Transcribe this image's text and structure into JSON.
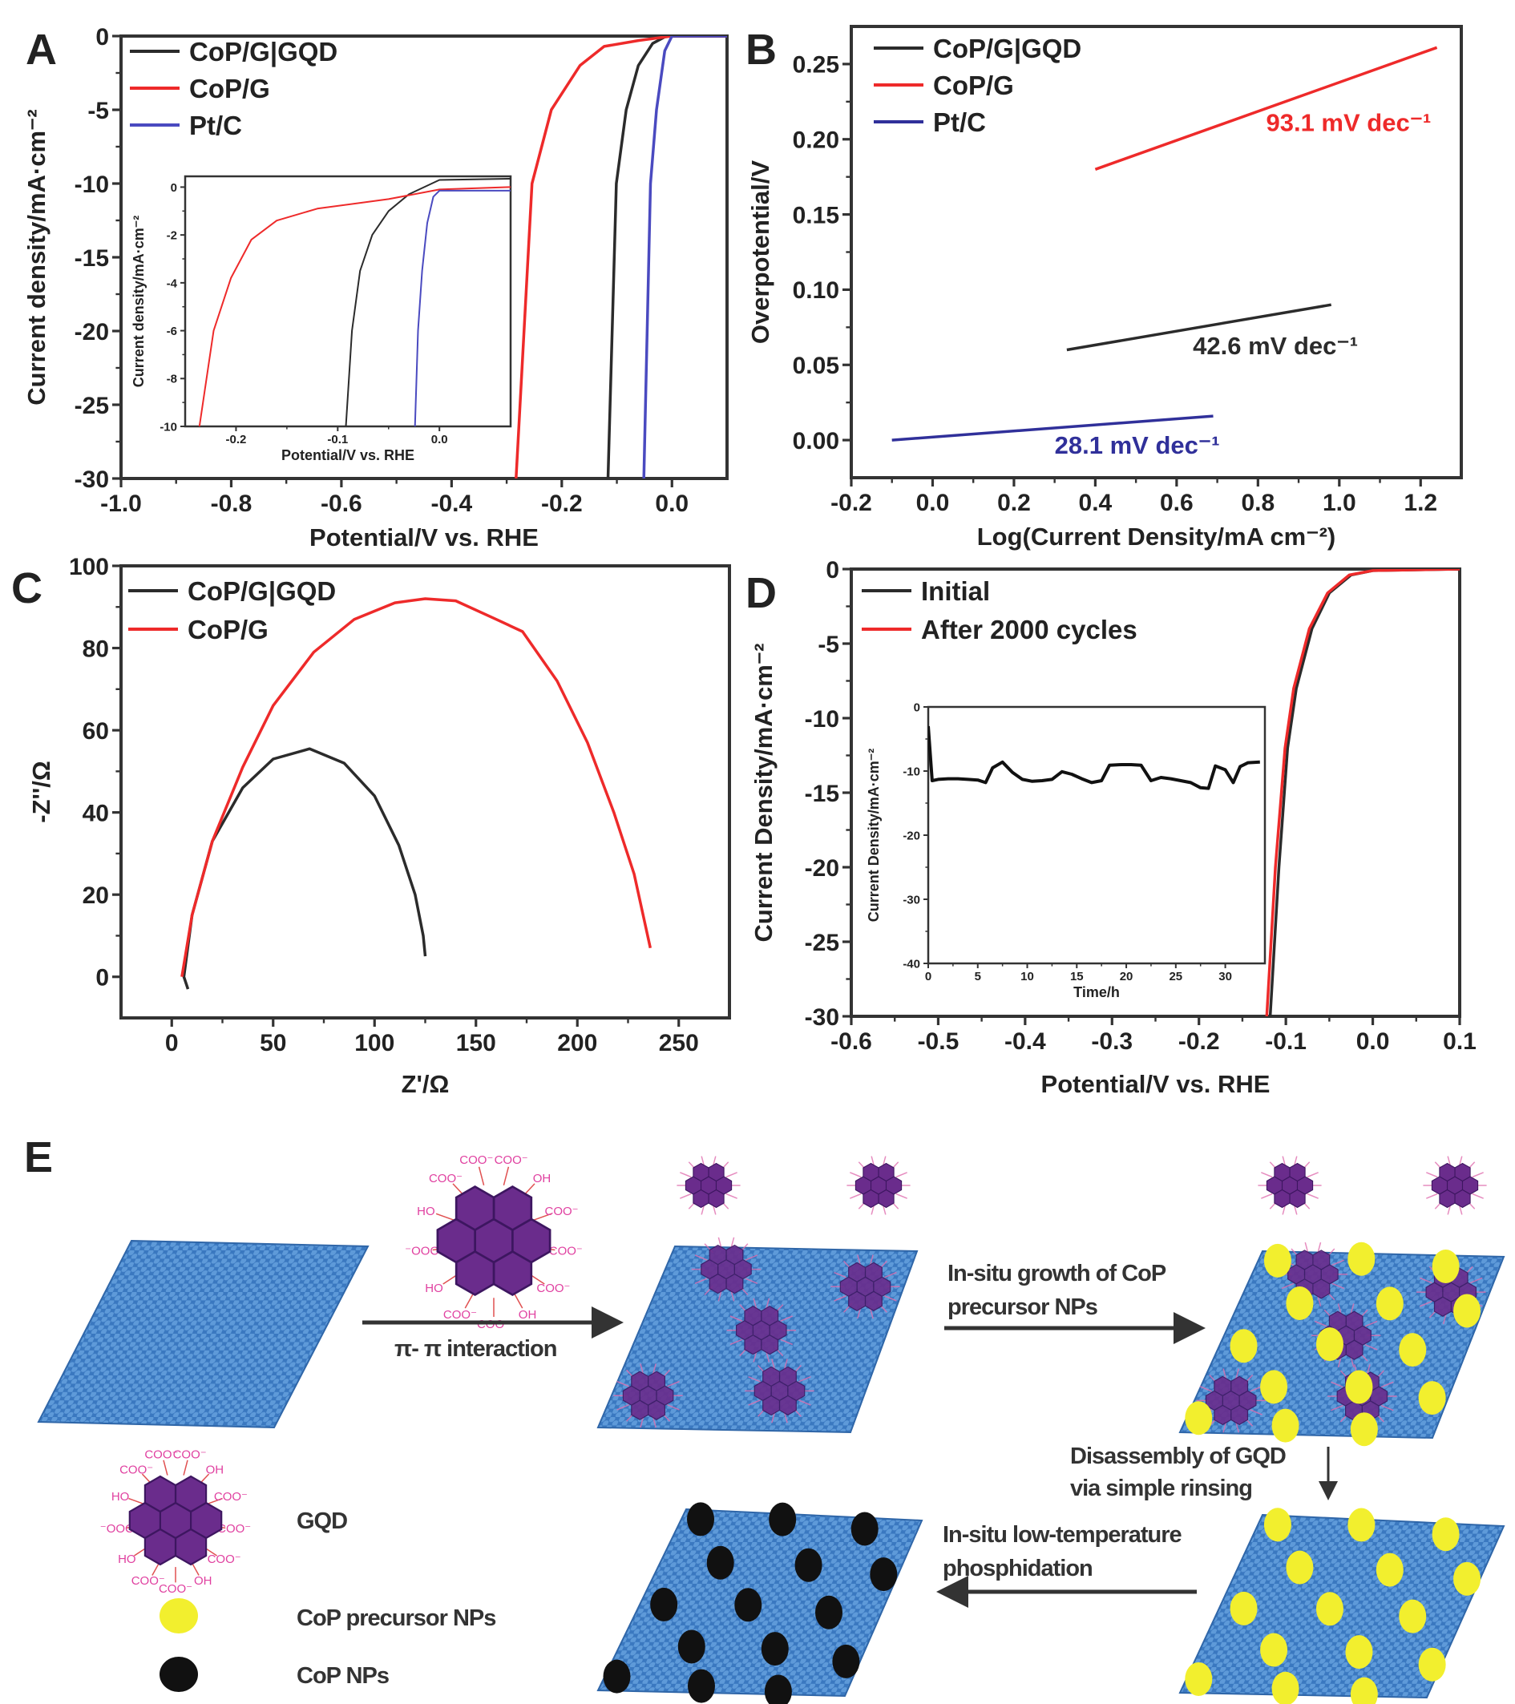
{
  "panels": {
    "a": "A",
    "b": "B",
    "c": "C",
    "d": "D",
    "e": "E"
  },
  "chart_data": [
    {
      "panel": "A",
      "type": "line",
      "xlabel": "Potential/V vs. RHE",
      "ylabel": "Current density/mA·cm⁻²",
      "xlim": [
        -1.0,
        0.1
      ],
      "ylim": [
        -30,
        0
      ],
      "xticks": [
        -1.0,
        -0.8,
        -0.6,
        -0.4,
        -0.2,
        0.0
      ],
      "xtick_labels": [
        "-1.0",
        "-0.8",
        "-0.6",
        "-0.4",
        "-0.2",
        "0.0"
      ],
      "yticks": [
        0,
        -5,
        -10,
        -15,
        -20,
        -25,
        -30
      ],
      "ytick_labels": [
        "0",
        "-5",
        "-10",
        "-15",
        "-20",
        "-25",
        "-30"
      ],
      "grid": false,
      "legend": "top-left",
      "series": [
        {
          "name": "CoP/G|GQD",
          "color": "#2b2b2b",
          "x": [
            -0.116,
            -0.101,
            -0.083,
            -0.061,
            -0.035,
            -0.01,
            0.1
          ],
          "y": [
            -30,
            -10,
            -5,
            -2,
            -0.5,
            0,
            0
          ]
        },
        {
          "name": "CoP/G",
          "color": "#ee2a2a",
          "x": [
            -0.283,
            -0.254,
            -0.219,
            -0.167,
            -0.123,
            -0.06,
            0.0,
            0.1
          ],
          "y": [
            -30,
            -10,
            -5,
            -2,
            -0.7,
            -0.3,
            0,
            0
          ]
        },
        {
          "name": "Pt/C",
          "color": "#4a4ac0",
          "x": [
            -0.051,
            -0.039,
            -0.028,
            -0.013,
            0.0,
            0.1
          ],
          "y": [
            -30,
            -10,
            -5,
            -1,
            0,
            0
          ]
        }
      ],
      "inset": {
        "xlabel": "Potential/V vs. RHE",
        "ylabel": "Current density/mA·cm⁻²",
        "xlim": [
          -0.25,
          0.07
        ],
        "ylim": [
          -10,
          0.45
        ],
        "xticks": [
          -0.2,
          -0.1,
          0.0
        ],
        "xtick_labels": [
          "-0.2",
          "-0.1",
          "0.0"
        ],
        "yticks": [
          0,
          -2,
          -4,
          -6,
          -8,
          -10
        ],
        "ytick_labels": [
          "0",
          "-2",
          "-4",
          "-6",
          "-8",
          "-10"
        ],
        "series": [
          {
            "color": "#2b2b2b",
            "x": [
              -0.092,
              -0.086,
              -0.078,
              -0.066,
              -0.05,
              -0.03,
              0.0,
              0.07
            ],
            "y": [
              -10,
              -6,
              -3.5,
              -2,
              -1,
              -0.3,
              0.3,
              0.35
            ]
          },
          {
            "color": "#ee2a2a",
            "x": [
              -0.236,
              -0.222,
              -0.205,
              -0.185,
              -0.16,
              -0.12,
              -0.05,
              0.0,
              0.07
            ],
            "y": [
              -10,
              -6,
              -3.8,
              -2.2,
              -1.4,
              -0.9,
              -0.5,
              -0.1,
              0
            ]
          },
          {
            "color": "#4a4ac0",
            "x": [
              -0.024,
              -0.021,
              -0.017,
              -0.012,
              -0.006,
              0.0,
              0.07
            ],
            "y": [
              -10,
              -6,
              -3.5,
              -1.5,
              -0.4,
              -0.15,
              -0.15
            ]
          }
        ]
      }
    },
    {
      "panel": "B",
      "type": "line",
      "xlabel": "Log(Current Density/mA cm⁻²)",
      "ylabel": "Overpotential/V",
      "xlim": [
        -0.2,
        1.3
      ],
      "ylim": [
        -0.025,
        0.275
      ],
      "xticks": [
        -0.2,
        0.0,
        0.2,
        0.4,
        0.6,
        0.8,
        1.0,
        1.2
      ],
      "xtick_labels": [
        "-0.2",
        "0.0",
        "0.2",
        "0.4",
        "0.6",
        "0.8",
        "1.0",
        "1.2"
      ],
      "yticks": [
        0.0,
        0.05,
        0.1,
        0.15,
        0.2,
        0.25
      ],
      "ytick_labels": [
        "0.00",
        "0.05",
        "0.10",
        "0.15",
        "0.20",
        "0.25"
      ],
      "grid": false,
      "legend": "top-left",
      "series": [
        {
          "name": "CoP/G|GQD",
          "color": "#2b2b2b",
          "x": [
            0.33,
            0.98
          ],
          "y": [
            0.06,
            0.09
          ],
          "annotation": "42.6 mV dec⁻¹"
        },
        {
          "name": "CoP/G",
          "color": "#ee2a2a",
          "x": [
            0.4,
            1.24
          ],
          "y": [
            0.18,
            0.261
          ],
          "annotation": "93.1 mV dec⁻¹"
        },
        {
          "name": "Pt/C",
          "color": "#30309a",
          "x": [
            -0.1,
            0.69
          ],
          "y": [
            0.0,
            0.016
          ],
          "annotation": "28.1 mV dec⁻¹"
        }
      ]
    },
    {
      "panel": "C",
      "type": "line",
      "xlabel": "Z'/Ω",
      "ylabel": "-Z''/Ω",
      "xlim": [
        -25,
        275
      ],
      "ylim": [
        -10,
        100
      ],
      "xticks": [
        0,
        50,
        100,
        150,
        200,
        250
      ],
      "xtick_labels": [
        "0",
        "50",
        "100",
        "150",
        "200",
        "250"
      ],
      "yticks": [
        0,
        20,
        40,
        60,
        80,
        100
      ],
      "ytick_labels": [
        "0",
        "20",
        "40",
        "60",
        "80",
        "100"
      ],
      "grid": false,
      "legend": "top-left",
      "series": [
        {
          "name": "CoP/G|GQD",
          "color": "#2b2b2b",
          "x": [
            8,
            6,
            10,
            20,
            35,
            50,
            68,
            85,
            100,
            112,
            120,
            124,
            125
          ],
          "y": [
            -3,
            0,
            15,
            33,
            46,
            53,
            55.5,
            52,
            44,
            32,
            20,
            10,
            5
          ]
        },
        {
          "name": "CoP/G",
          "color": "#ee2a2a",
          "x": [
            5,
            10,
            20,
            35,
            50,
            70,
            90,
            110,
            125,
            140,
            160,
            173,
            190,
            205,
            218,
            228,
            236
          ],
          "y": [
            0,
            15,
            33,
            51,
            66,
            79,
            87,
            91,
            92,
            91.5,
            87,
            84,
            72,
            57,
            40,
            25,
            7
          ]
        }
      ]
    },
    {
      "panel": "D",
      "type": "line",
      "xlabel": "Potential/V vs. RHE",
      "ylabel": "Current Density/mA·cm⁻²",
      "xlim": [
        -0.6,
        0.1
      ],
      "ylim": [
        -30,
        0
      ],
      "xticks": [
        -0.6,
        -0.5,
        -0.4,
        -0.3,
        -0.2,
        -0.1,
        0.0,
        0.1
      ],
      "xtick_labels": [
        "-0.6",
        "-0.5",
        "-0.4",
        "-0.3",
        "-0.2",
        "-0.1",
        "0.0",
        "0.1"
      ],
      "yticks": [
        0,
        -5,
        -10,
        -15,
        -20,
        -25,
        -30
      ],
      "ytick_labels": [
        "0",
        "-5",
        "-10",
        "-15",
        "-20",
        "-25",
        "-30"
      ],
      "grid": false,
      "legend": "top-left",
      "series": [
        {
          "name": "Initial",
          "color": "#2b2b2b",
          "x": [
            -0.118,
            -0.108,
            -0.098,
            -0.088,
            -0.07,
            -0.05,
            -0.025,
            0.0,
            0.1
          ],
          "y": [
            -30,
            -20,
            -12,
            -8,
            -4,
            -1.6,
            -0.4,
            -0.1,
            0
          ]
        },
        {
          "name": "After 2000 cycles",
          "color": "#ee2a2a",
          "x": [
            -0.122,
            -0.112,
            -0.101,
            -0.091,
            -0.073,
            -0.052,
            -0.027,
            0.0,
            0.1
          ],
          "y": [
            -30,
            -20,
            -12,
            -8,
            -4,
            -1.6,
            -0.4,
            -0.1,
            0
          ]
        }
      ],
      "inset": {
        "xlabel": "Time/h",
        "ylabel": "Current Density/mA·cm⁻²",
        "xlim": [
          0,
          34
        ],
        "ylim": [
          -40,
          0
        ],
        "xticks": [
          0,
          5,
          10,
          15,
          20,
          25,
          30
        ],
        "xtick_labels": [
          "0",
          "5",
          "10",
          "15",
          "20",
          "25",
          "30"
        ],
        "yticks": [
          0,
          -10,
          -20,
          -30,
          -40
        ],
        "ytick_labels": [
          "0",
          "-10",
          "-20",
          "-30",
          "-40"
        ],
        "series": [
          {
            "color": "#111111",
            "x": [
              0,
              0.4,
              1,
              2,
              3,
              4,
              5,
              5.8,
              6.5,
              7.5,
              8.5,
              9.5,
              10.5,
              11.5,
              12.5,
              13.5,
              14.5,
              15.5,
              16.5,
              17.5,
              18.3,
              19.5,
              20.5,
              21.5,
              22.5,
              23.5,
              24.5,
              25.5,
              26.5,
              27.5,
              28.3,
              29,
              30,
              30.8,
              31.5,
              32.3,
              33.5
            ],
            "y": [
              -3,
              -11.5,
              -11.3,
              -11.2,
              -11.2,
              -11.3,
              -11.4,
              -11.8,
              -9.5,
              -8.6,
              -10.2,
              -11.3,
              -11.6,
              -11.5,
              -11.3,
              -10.1,
              -10.5,
              -11.2,
              -11.8,
              -11.5,
              -9.1,
              -9.0,
              -9.0,
              -9.1,
              -11.5,
              -11.0,
              -11.2,
              -11.5,
              -11.8,
              -12.6,
              -12.7,
              -9.2,
              -9.8,
              -11.8,
              -9.3,
              -8.7,
              -8.6
            ]
          }
        ]
      }
    }
  ],
  "schematic": {
    "gqd_groups": [
      "COO⁻",
      "COO⁻",
      "COO⁻",
      "OH",
      "COO⁻",
      "COO⁻",
      "COO⁻",
      "OH",
      "COO⁻",
      "COO⁻",
      "HO",
      "⁻OOC",
      "HO"
    ],
    "step1_label": "π- π interaction",
    "step2_label_line1": "In-situ growth of CoP",
    "step2_label_line2": "precursor NPs",
    "step3_label_line1": "Disassembly of GQD",
    "step3_label_line2": "via simple rinsing",
    "step4_label_line1": "In-situ low-temperature",
    "step4_label_line2": "phosphidation",
    "legend": {
      "gqd": "GQD",
      "precursor": "CoP precursor NPs",
      "cop": "CoP NPs"
    },
    "colors": {
      "graphene": "#3b7cc4",
      "gqd": "#6a2c8c",
      "precursor": "#f2ef2e",
      "cop": "#111111",
      "functional_group": "#e040a0"
    }
  }
}
